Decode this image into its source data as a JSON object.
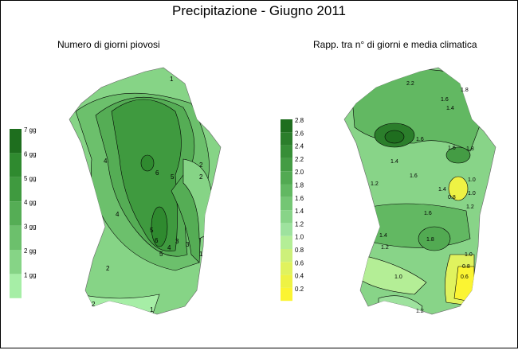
{
  "title": "Precipitazione - Giugno 2011",
  "left_panel": {
    "subtitle": "Numero di giorni piovosi",
    "legend": {
      "labels": [
        "7 gg",
        "6 gg",
        "5 gg",
        "4 gg",
        "3 gg",
        "2 gg",
        "1 gg"
      ],
      "colors": [
        "#1e6e1e",
        "#2f8a2f",
        "#3f9a3f",
        "#55ad55",
        "#6cc06c",
        "#86d486",
        "#a6eea6"
      ]
    },
    "contour_labels": [
      "1",
      "2",
      "3",
      "4",
      "5",
      "6",
      "4",
      "5",
      "2",
      "1",
      "2",
      "6",
      "5",
      "4",
      "3",
      "2",
      "1"
    ]
  },
  "right_panel": {
    "subtitle": "Rapp. tra n° di giorni e media climatica",
    "legend": {
      "labels": [
        "2.8",
        "2.6",
        "2.4",
        "2.2",
        "2.0",
        "1.8",
        "1.6",
        "1.4",
        "1.2",
        "1.0",
        "0.8",
        "0.6",
        "0.4",
        "0.2"
      ],
      "colors": [
        "#1f6e1f",
        "#2b7e2b",
        "#378e37",
        "#449c44",
        "#52aa52",
        "#62b862",
        "#74c674",
        "#88d488",
        "#9ee29e",
        "#b4ee96",
        "#cdf07a",
        "#e0f25e",
        "#eef244",
        "#fbf432"
      ]
    },
    "contour_labels": [
      "2.2",
      "1.8",
      "1.6",
      "1.4",
      "1.2",
      "1.0",
      "0.8",
      "1.6",
      "1.4",
      "1.8",
      "1.6",
      "1.2",
      "1.4",
      "1.0",
      "1.6",
      "1.8",
      "1.2",
      "1.4",
      "1.0",
      "0.8",
      "0.6",
      "1.0",
      "1.2",
      "1.6"
    ]
  }
}
